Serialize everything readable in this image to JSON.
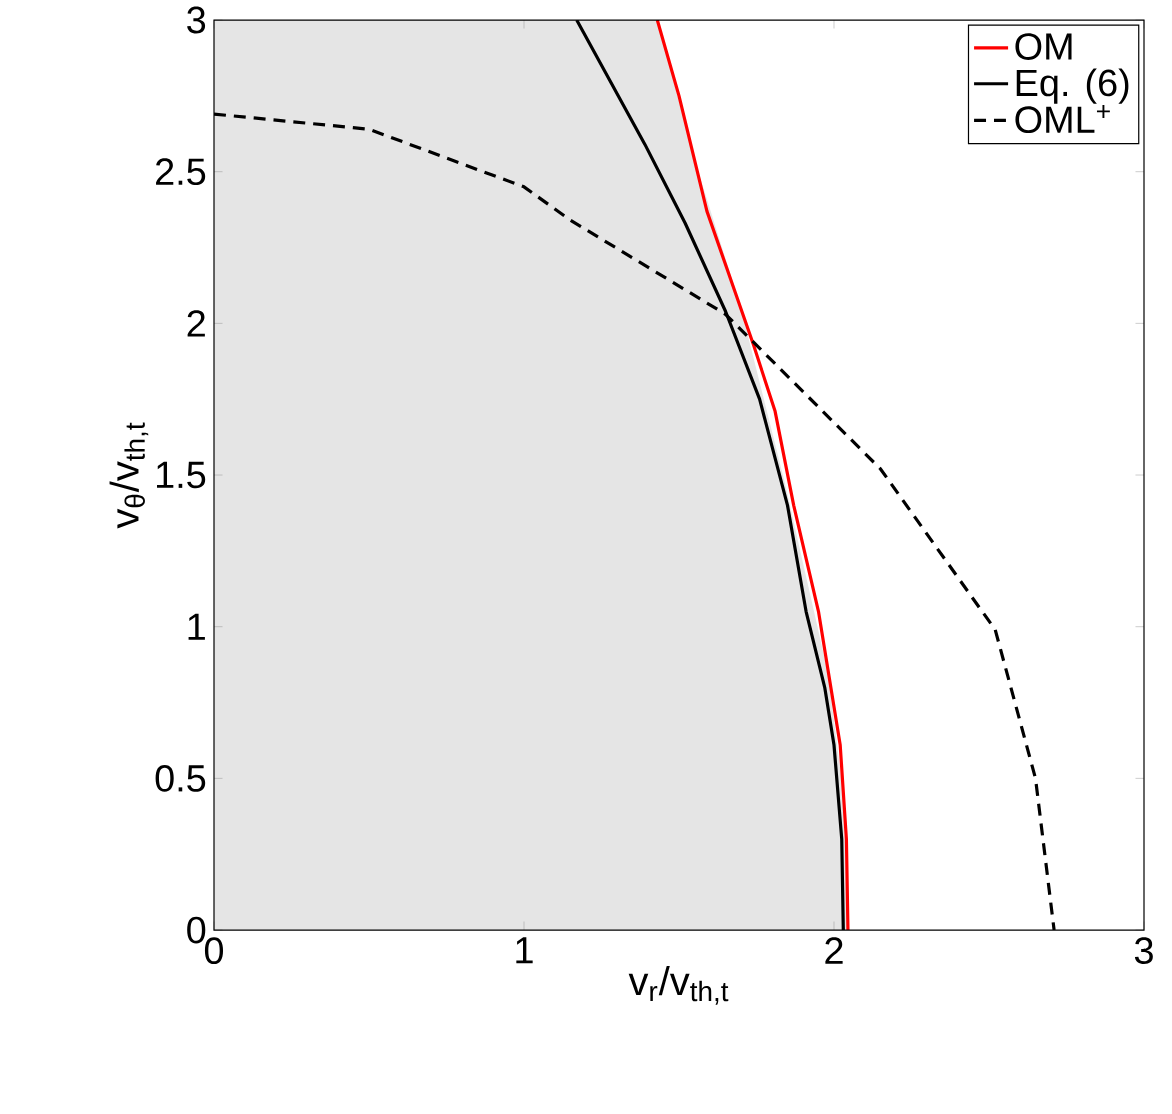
{
  "chart_data": {
    "type": "line",
    "xlabel": "v$_{r}$/v$_{th,t}$",
    "ylabel": "v$_{θ}$/v$_{th,t}$",
    "xlim": [
      0,
      3
    ],
    "ylim": [
      0,
      3
    ],
    "xticks": [
      0,
      1,
      2,
      3
    ],
    "yticks": [
      0,
      0.5,
      1,
      1.5,
      2,
      2.5,
      3
    ],
    "grid": false,
    "legend": "top right",
    "series": [
      {
        "name": "OM",
        "color": "#ff0000",
        "line_style": "solid",
        "x": [
          1.43,
          1.5,
          1.59,
          1.74,
          1.81,
          1.87,
          1.95,
          2.02,
          2.04,
          2.045
        ],
        "values": [
          3,
          2.75,
          2.37,
          1.93,
          1.71,
          1.4,
          1.05,
          0.61,
          0.3,
          0
        ]
      },
      {
        "name": "Eq. (6)",
        "color": "#000000",
        "line_style": "solid",
        "x": [
          1.17,
          1.39,
          1.52,
          1.65,
          1.76,
          1.85,
          1.91,
          1.97,
          2.0,
          2.025,
          2.03
        ],
        "values": [
          3,
          2.59,
          2.33,
          2.04,
          1.75,
          1.4,
          1.05,
          0.8,
          0.61,
          0.3,
          0
        ]
      },
      {
        "name": "OML$^{+}$",
        "color": "#000000",
        "line_style": "dashed",
        "x": [
          0,
          0.5,
          1.0,
          1.15,
          1.65,
          2.15,
          2.52,
          2.65,
          2.71
        ],
        "values": [
          2.69,
          2.64,
          2.45,
          2.34,
          2.03,
          1.52,
          0.99,
          0.5,
          0
        ]
      },
      {
        "type": "area",
        "color": "#e5e5e5",
        "x": [
          0,
          1.43,
          1.55,
          1.7,
          1.84,
          1.98,
          2.03,
          2.045
        ],
        "values": [
          3,
          3,
          2.54,
          2.05,
          1.48,
          0.85,
          0.45,
          0
        ]
      }
    ]
  }
}
